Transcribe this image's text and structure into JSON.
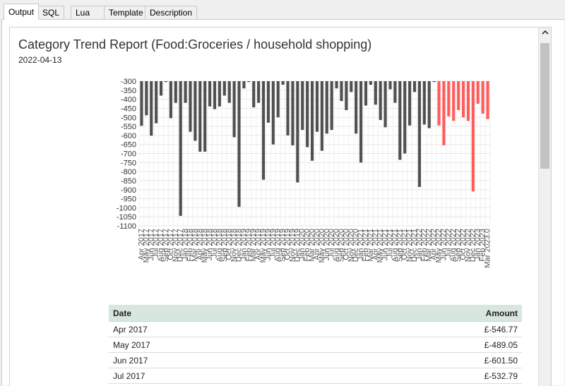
{
  "tabs": [
    "Output",
    "SQL",
    "Lua",
    "Template",
    "Description"
  ],
  "report": {
    "title": "Category Trend Report (Food:Groceries / household shopping)",
    "date": "2022-04-13"
  },
  "chart_data": {
    "type": "bar",
    "ylim": [
      -1100,
      -300
    ],
    "yticks": [
      -300,
      -350,
      -400,
      -450,
      -500,
      -550,
      -600,
      -650,
      -700,
      -750,
      -800,
      -850,
      -900,
      -950,
      -1000,
      -1050,
      -1100
    ],
    "grid": true,
    "colors": {
      "actual": "#505050",
      "forecast": "#ff5c5c"
    },
    "categories": [
      "Apr 2017",
      "May 2017",
      "Jun 2017",
      "Jul 2017",
      "Aug 2017",
      "Sep 2017",
      "Oct 2017",
      "Nov 2017",
      "Dec 2017",
      "Jan 2018",
      "Feb 2018",
      "Mar 2018",
      "Apr 2018",
      "May 2018",
      "Jun 2018",
      "Jul 2018",
      "Aug 2018",
      "Sep 2018",
      "Oct 2018",
      "Nov 2018",
      "Dec 2018",
      "Jan 2019",
      "Feb 2019",
      "Mar 2019",
      "Apr 2019",
      "May 2019",
      "Jun 2019",
      "Jul 2019",
      "Aug 2019",
      "Sep 2019",
      "Oct 2019",
      "Nov 2019",
      "Dec 2019",
      "Jan 2020",
      "Feb 2020",
      "Mar 2020",
      "Apr 2020",
      "May 2020",
      "Jun 2020",
      "Jul 2020",
      "Aug 2020",
      "Sep 2020",
      "Oct 2020",
      "Nov 2020",
      "Dec 2020",
      "Jan 2021",
      "Feb 2021",
      "Mar 2021",
      "Apr 2021",
      "May 2021",
      "Jun 2021",
      "Jul 2021",
      "Aug 2021",
      "Sep 2021",
      "Oct 2021",
      "Nov 2021",
      "Dec 2021",
      "Jan 2022",
      "Feb 2022",
      "Mar 2022",
      "Apr 2022",
      "May 2022",
      "Jun 2022",
      "Jul 2022",
      "Aug 2022",
      "Sep 2022",
      "Oct 2022",
      "Nov 2022",
      "Dec 2022",
      "Jan 2023",
      "Feb 2023",
      "Mar 2023.0"
    ],
    "series": [
      {
        "values": [
          -546.77,
          -489.05,
          -601.5,
          -532.79,
          -380,
          -305,
          -505,
          -420,
          -1045,
          -420,
          -580,
          -630,
          -690,
          -690,
          -440,
          -455,
          -440,
          -380,
          -420,
          -610,
          -995,
          -340,
          -305,
          -445,
          -420,
          -845,
          -530,
          -650,
          -500,
          -320,
          -600,
          -655,
          -860,
          -570,
          -665,
          -740,
          -580,
          -685,
          -590,
          -570,
          -340,
          -410,
          -460,
          -360,
          -590,
          -750,
          -435,
          -320,
          -430,
          -515,
          -555,
          -345,
          -420,
          -735,
          -700,
          -545,
          -360,
          -885,
          -540,
          -560,
          -305,
          null,
          null,
          null,
          null,
          null,
          null,
          null,
          null,
          null,
          null,
          null
        ]
      },
      {
        "values": [
          null,
          null,
          null,
          null,
          null,
          null,
          null,
          null,
          null,
          null,
          null,
          null,
          null,
          null,
          null,
          null,
          null,
          null,
          null,
          null,
          null,
          null,
          null,
          null,
          null,
          null,
          null,
          null,
          null,
          null,
          null,
          null,
          null,
          null,
          null,
          null,
          null,
          null,
          null,
          null,
          null,
          null,
          null,
          null,
          null,
          null,
          null,
          null,
          null,
          null,
          null,
          null,
          null,
          null,
          null,
          null,
          null,
          null,
          null,
          null,
          null,
          -545,
          -655,
          -495,
          -520,
          -460,
          -500,
          -520,
          -910,
          -425,
          -480,
          -510
        ]
      }
    ]
  },
  "table": {
    "headers": {
      "date": "Date",
      "amount": "Amount"
    },
    "rows": [
      {
        "date": "Apr 2017",
        "amount": "£-546.77"
      },
      {
        "date": "May 2017",
        "amount": "£-489.05"
      },
      {
        "date": "Jun 2017",
        "amount": "£-601.50"
      },
      {
        "date": "Jul 2017",
        "amount": "£-532.79"
      }
    ]
  },
  "icons": {
    "scroll_up": "chevron-up-icon"
  }
}
